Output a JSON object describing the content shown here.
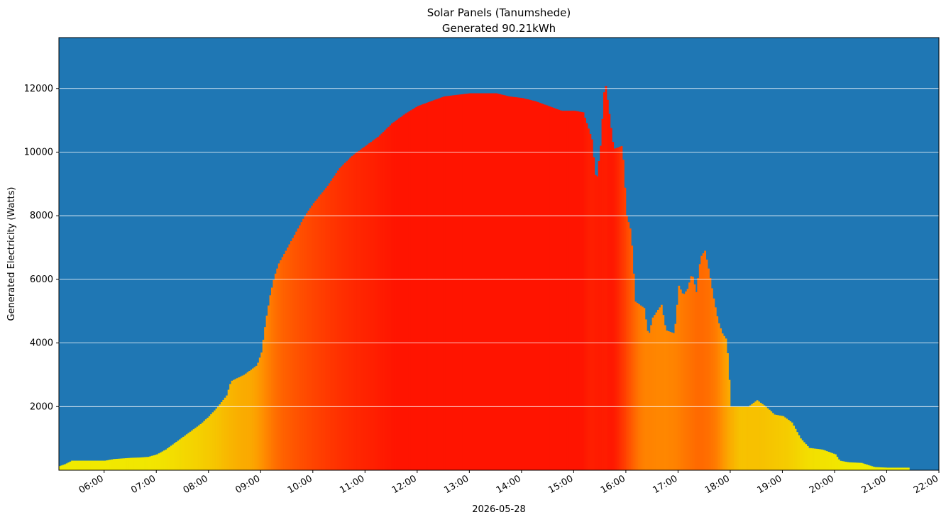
{
  "chart_data": {
    "type": "bar",
    "title": "Solar Panels (Tanumshede)",
    "subtitle": "Generated 90.21kWh",
    "ylabel": "Generated Electricity (Watts)",
    "xlabel": "2026-05-28",
    "ylim": [
      0,
      13600
    ],
    "xlim": [
      "05:08",
      "22:00"
    ],
    "grid": "horizontal",
    "y_ticks": [
      2000,
      4000,
      6000,
      8000,
      10000,
      12000
    ],
    "x_ticks": [
      "06:00",
      "07:00",
      "08:00",
      "09:00",
      "10:00",
      "11:00",
      "12:00",
      "13:00",
      "14:00",
      "15:00",
      "16:00",
      "17:00",
      "18:00",
      "19:00",
      "20:00",
      "21:00",
      "22:00"
    ],
    "colors": {
      "background": "#1f77b4",
      "low": "#f0f000",
      "mid": "#ff8c00",
      "high": "#ff1400",
      "grid": "#ffffff"
    },
    "series": [
      {
        "points": [
          [
            "05:08",
            130
          ],
          [
            "05:15",
            200
          ],
          [
            "05:22",
            300
          ],
          [
            "05:30",
            300
          ],
          [
            "05:45",
            300
          ],
          [
            "06:00",
            300
          ],
          [
            "06:10",
            350
          ],
          [
            "06:20",
            370
          ],
          [
            "06:30",
            390
          ],
          [
            "06:40",
            400
          ],
          [
            "06:50",
            420
          ],
          [
            "07:00",
            500
          ],
          [
            "07:10",
            650
          ],
          [
            "07:20",
            850
          ],
          [
            "07:30",
            1050
          ],
          [
            "07:40",
            1250
          ],
          [
            "07:50",
            1450
          ],
          [
            "08:00",
            1700
          ],
          [
            "08:10",
            2000
          ],
          [
            "08:20",
            2350
          ],
          [
            "08:25",
            2800
          ],
          [
            "08:40",
            3000
          ],
          [
            "08:55",
            3300
          ],
          [
            "09:00",
            3700
          ],
          [
            "09:05",
            4700
          ],
          [
            "09:10",
            5500
          ],
          [
            "09:15",
            6100
          ],
          [
            "09:20",
            6500
          ],
          [
            "09:30",
            7000
          ],
          [
            "09:40",
            7500
          ],
          [
            "09:50",
            8000
          ],
          [
            "10:00",
            8400
          ],
          [
            "10:15",
            8900
          ],
          [
            "10:30",
            9500
          ],
          [
            "10:45",
            9900
          ],
          [
            "11:00",
            10200
          ],
          [
            "11:15",
            10500
          ],
          [
            "11:30",
            10900
          ],
          [
            "11:45",
            11200
          ],
          [
            "12:00",
            11450
          ],
          [
            "12:15",
            11600
          ],
          [
            "12:30",
            11750
          ],
          [
            "12:45",
            11800
          ],
          [
            "13:00",
            11850
          ],
          [
            "13:15",
            11850
          ],
          [
            "13:30",
            11850
          ],
          [
            "13:45",
            11750
          ],
          [
            "14:00",
            11700
          ],
          [
            "14:15",
            11600
          ],
          [
            "14:30",
            11450
          ],
          [
            "14:45",
            11300
          ],
          [
            "15:00",
            11300
          ],
          [
            "15:10",
            11250
          ],
          [
            "15:20",
            10400
          ],
          [
            "15:25",
            9000
          ],
          [
            "15:30",
            10200
          ],
          [
            "15:35",
            12300
          ],
          [
            "15:40",
            11200
          ],
          [
            "15:45",
            10100
          ],
          [
            "15:55",
            10200
          ],
          [
            "16:00",
            8000
          ],
          [
            "16:05",
            7500
          ],
          [
            "16:10",
            5300
          ],
          [
            "16:20",
            5100
          ],
          [
            "16:25",
            4200
          ],
          [
            "16:30",
            4800
          ],
          [
            "16:40",
            5200
          ],
          [
            "16:45",
            4400
          ],
          [
            "16:55",
            4300
          ],
          [
            "17:00",
            5800
          ],
          [
            "17:05",
            5500
          ],
          [
            "17:10",
            5700
          ],
          [
            "17:15",
            6200
          ],
          [
            "17:20",
            5600
          ],
          [
            "17:25",
            6700
          ],
          [
            "17:30",
            6900
          ],
          [
            "17:35",
            6200
          ],
          [
            "17:40",
            5400
          ],
          [
            "17:45",
            4700
          ],
          [
            "17:50",
            4300
          ],
          [
            "17:55",
            4100
          ],
          [
            "18:00",
            2000
          ],
          [
            "18:10",
            2000
          ],
          [
            "18:20",
            2000
          ],
          [
            "18:30",
            2200
          ],
          [
            "18:40",
            2000
          ],
          [
            "18:50",
            1750
          ],
          [
            "19:00",
            1700
          ],
          [
            "19:10",
            1500
          ],
          [
            "19:20",
            1000
          ],
          [
            "19:30",
            700
          ],
          [
            "19:45",
            650
          ],
          [
            "20:00",
            500
          ],
          [
            "20:05",
            300
          ],
          [
            "20:15",
            250
          ],
          [
            "20:30",
            230
          ],
          [
            "20:45",
            100
          ],
          [
            "21:00",
            80
          ],
          [
            "21:25",
            80
          ]
        ]
      }
    ]
  }
}
